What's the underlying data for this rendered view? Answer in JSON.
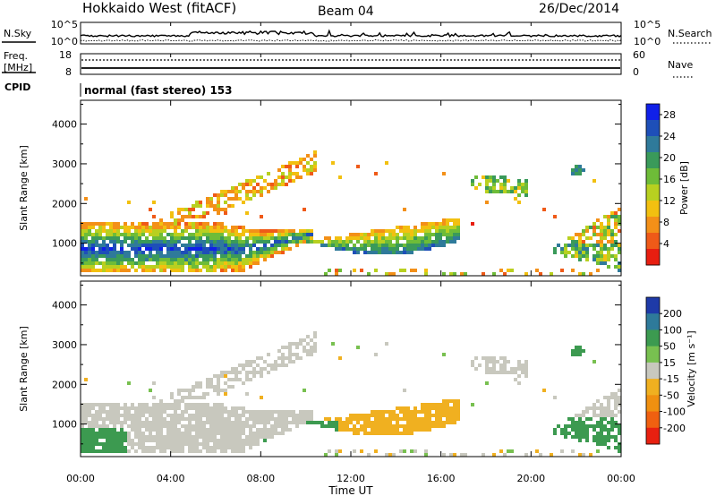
{
  "header": {
    "title": "Hokkaido West (fitACF)",
    "beam": "Beam 04",
    "date": "26/Dec/2014"
  },
  "top_panel": {
    "left_label": "N.Sky",
    "left_ticks": [
      "10^5",
      "10^0"
    ],
    "right_ticks": [
      "10^5",
      "10^0"
    ],
    "right_label": "N.Search"
  },
  "freq_panel": {
    "left_label_line1": "Freq.",
    "left_label_line2": "[MHz]",
    "left_ticks": [
      "18",
      "8"
    ],
    "right_ticks": [
      "60",
      "0"
    ],
    "right_label": "Nave"
  },
  "cpid": {
    "label": "CPID",
    "value": "normal (fast stereo) 153"
  },
  "chart_data": [
    {
      "type": "heatmap",
      "name": "power",
      "ylabel": "Slant Range [km]",
      "xlabel": "",
      "yticks": [
        "1000",
        "2000",
        "3000",
        "4000"
      ],
      "xticks": [
        "00:00",
        "04:00",
        "08:00",
        "12:00",
        "16:00",
        "20:00",
        "00:00"
      ],
      "xlim_hours": [
        0,
        24
      ],
      "ylim_km": [
        180,
        4600
      ],
      "colorbar": {
        "label": "Power [dB]",
        "ticks": [
          "4",
          "8",
          "12",
          "16",
          "20",
          "24",
          "28"
        ],
        "colors": [
          "#1020e8",
          "#1e4fb8",
          "#2f7a9a",
          "#3a9a5a",
          "#6ebc38",
          "#b8d020",
          "#f2c010",
          "#f39018",
          "#ef5a18",
          "#e81e10"
        ]
      }
    },
    {
      "type": "heatmap",
      "name": "velocity",
      "ylabel": "Slant Range [km]",
      "xlabel": "Time UT",
      "yticks": [
        "1000",
        "2000",
        "3000",
        "4000"
      ],
      "xticks": [
        "00:00",
        "04:00",
        "08:00",
        "12:00",
        "16:00",
        "20:00",
        "00:00"
      ],
      "xlim_hours": [
        0,
        24
      ],
      "ylim_km": [
        180,
        4600
      ],
      "colorbar": {
        "label": "Velocity [m s⁻¹]",
        "ticks": [
          "200",
          "100",
          "50",
          "15",
          "-15",
          "-50",
          "-100",
          "-200"
        ],
        "colors": [
          "#1e3aa8",
          "#2e7a9a",
          "#3c9a50",
          "#78c050",
          "#c8c8be",
          "#f0b020",
          "#f09010",
          "#f06010",
          "#e82010"
        ]
      }
    }
  ]
}
